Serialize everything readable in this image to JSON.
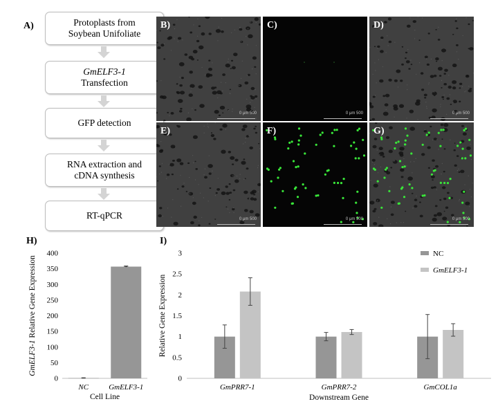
{
  "panel_a": {
    "letter": "A)",
    "steps": [
      {
        "line1": "Protoplasts from",
        "line2": "Soybean Unifoliate"
      },
      {
        "line1": "GmELF3-1",
        "line2": "Transfection"
      },
      {
        "line1": "GFP detection",
        "line2": ""
      },
      {
        "line1": "RNA extraction and",
        "line2": "cDNA synthesis"
      },
      {
        "line1": "RT-qPCR",
        "line2": ""
      }
    ]
  },
  "micrographs": [
    {
      "letter": "B)",
      "scale": "0   μm   500"
    },
    {
      "letter": "C)",
      "scale": "0   μm   500"
    },
    {
      "letter": "D)",
      "scale": "0   μm   500"
    },
    {
      "letter": "E)",
      "scale": "0   μm   500"
    },
    {
      "letter": "F)",
      "scale": "0   μm   500"
    },
    {
      "letter": "G)",
      "scale": "0   μm   500"
    }
  ],
  "colors": {
    "bar_nc": "#969696",
    "bar_elf": "#c4c4c4",
    "gfp": "#39e639"
  },
  "chart_data": [
    {
      "panel": "H)",
      "type": "bar",
      "categories": [
        "NC",
        "GmELF3-1"
      ],
      "values": [
        1,
        357
      ],
      "errors": [
        0.5,
        1.5
      ],
      "xlabel": "Cell Line",
      "ylabel_italic": "GmELF3-1",
      "ylabel_rest": " Relative Gene Expression",
      "ylim": [
        0,
        400
      ],
      "yticks": [
        "0",
        "50",
        "100",
        "150",
        "200",
        "250",
        "300",
        "350",
        "400"
      ],
      "grid": false
    },
    {
      "panel": "I)",
      "type": "bar",
      "categories": [
        "GmPRR7-1",
        "GmPRR7-2",
        "GmCOL1a"
      ],
      "series": [
        {
          "name": "NC",
          "values": [
            1.0,
            1.0,
            1.0
          ],
          "errors": [
            0.28,
            0.1,
            0.53
          ]
        },
        {
          "name": "GmELF3-1",
          "values": [
            2.08,
            1.11,
            1.16
          ],
          "errors": [
            0.33,
            0.06,
            0.15
          ]
        }
      ],
      "xlabel": "Downstream Gene",
      "ylabel": "Relative Gene Expression",
      "ylim": [
        0,
        3
      ],
      "yticks": [
        "0",
        "0.5",
        "1",
        "1.5",
        "2",
        "2.5",
        "3"
      ],
      "legend": "top-right",
      "grid": false
    }
  ]
}
